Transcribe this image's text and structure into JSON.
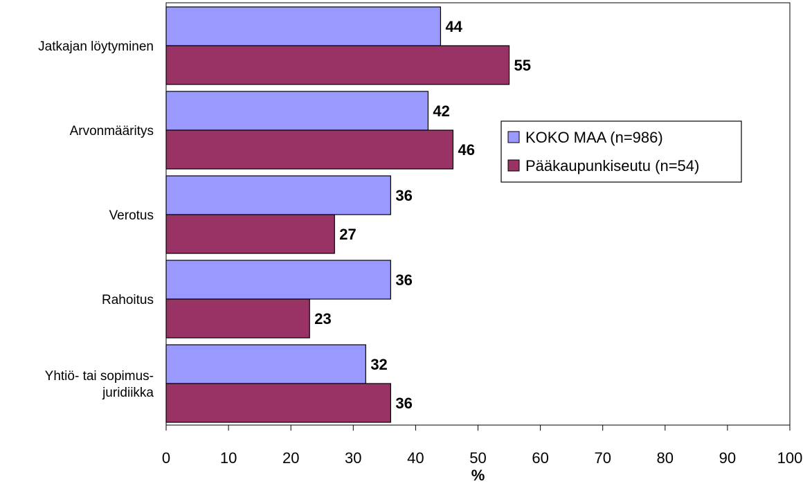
{
  "chart_data": {
    "type": "bar",
    "orientation": "horizontal",
    "categories": [
      [
        "Jatkajan löytyminen"
      ],
      [
        "Arvonmääritys"
      ],
      [
        "Verotus"
      ],
      [
        "Rahoitus"
      ],
      [
        "Yhtiö- tai sopimus-",
        "juridiikka"
      ]
    ],
    "series": [
      {
        "name": "KOKO MAA (n=986)",
        "values": [
          44,
          42,
          36,
          36,
          32
        ],
        "color": "#9999ff"
      },
      {
        "name": "Pääkaupunkiseutu (n=54)",
        "values": [
          55,
          46,
          27,
          23,
          36
        ],
        "color": "#993366"
      }
    ],
    "xlabel": "%",
    "xlim": [
      0,
      100
    ],
    "xticks": [
      0,
      10,
      20,
      30,
      40,
      50,
      60,
      70,
      80,
      90,
      100
    ],
    "grid": false,
    "legend_position": "right"
  }
}
